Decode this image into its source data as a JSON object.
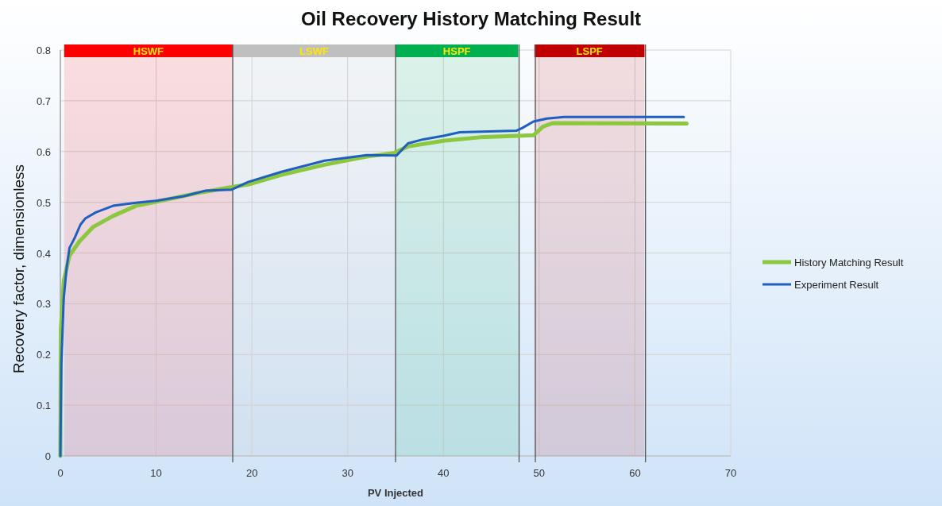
{
  "chart_data": {
    "type": "line",
    "title": "Oil Recovery History Matching Result",
    "xlabel": "PV Injected",
    "ylabel": "Recovery factor, dimensionless",
    "xlim": [
      0,
      70
    ],
    "xticks": [
      0,
      10,
      20,
      30,
      40,
      50,
      60,
      70
    ],
    "ylim": [
      0,
      0.8
    ],
    "yticks": [
      0,
      0.1,
      0.2,
      0.3,
      0.4,
      0.5,
      0.6,
      0.7,
      0.8
    ],
    "grid": true,
    "legend": "right",
    "marker": "none",
    "line_style": "solid",
    "series": [
      {
        "name": "History Matching Result",
        "color": "#8dc63f",
        "x": [
          0,
          0.05,
          0.35,
          0.95,
          2,
          3.4,
          5.5,
          7.9,
          10,
          14.3,
          17.9,
          19.6,
          23.1,
          27.6,
          32,
          34.8,
          36.3,
          40,
          43.8,
          49.4,
          50.4,
          51.4,
          65.4
        ],
        "values": [
          0,
          0.25,
          0.345,
          0.395,
          0.423,
          0.451,
          0.473,
          0.493,
          0.501,
          0.518,
          0.53,
          0.535,
          0.554,
          0.574,
          0.59,
          0.597,
          0.61,
          0.621,
          0.628,
          0.632,
          0.649,
          0.656,
          0.655
        ]
      },
      {
        "name": "Experiment Result",
        "color": "#1f5fbf",
        "x": [
          0,
          0.1,
          0.35,
          0.65,
          0.95,
          1.5,
          2.1,
          2.6,
          3.7,
          5.5,
          7.9,
          10,
          12.9,
          15.2,
          17.9,
          19.6,
          23.1,
          27.6,
          32,
          34.8,
          35.1,
          36.3,
          37.9,
          40,
          41.7,
          47.6,
          48.2,
          49.4,
          50.8,
          52.6,
          65.1
        ],
        "values": [
          0,
          0.18,
          0.31,
          0.37,
          0.41,
          0.43,
          0.456,
          0.468,
          0.48,
          0.493,
          0.499,
          0.503,
          0.512,
          0.523,
          0.525,
          0.54,
          0.56,
          0.582,
          0.593,
          0.592,
          0.592,
          0.616,
          0.624,
          0.631,
          0.638,
          0.641,
          0.646,
          0.659,
          0.665,
          0.668,
          0.668
        ]
      }
    ],
    "ref_lines": [
      {
        "axis": "x",
        "value": 18,
        "color": "#555555"
      },
      {
        "axis": "x",
        "value": 35,
        "color": "#555555"
      },
      {
        "axis": "x",
        "value": 47.9,
        "color": "#555555"
      },
      {
        "axis": "x",
        "value": 49.6,
        "color": "#555555"
      },
      {
        "axis": "x",
        "value": 61.1,
        "color": "#555555"
      }
    ],
    "bands": [
      {
        "axis": "x",
        "from": 0.4,
        "to": 18,
        "label": "HSWF",
        "color": "#ff0000"
      },
      {
        "axis": "x",
        "from": 18,
        "to": 35,
        "label": "LSWF",
        "color": "#bfbfbf"
      },
      {
        "axis": "x",
        "from": 35,
        "to": 47.8,
        "label": "HSPF",
        "color": "#00b050"
      },
      {
        "axis": "x",
        "from": 49.5,
        "to": 61,
        "label": "LSPF",
        "color": "#c00000"
      }
    ]
  }
}
